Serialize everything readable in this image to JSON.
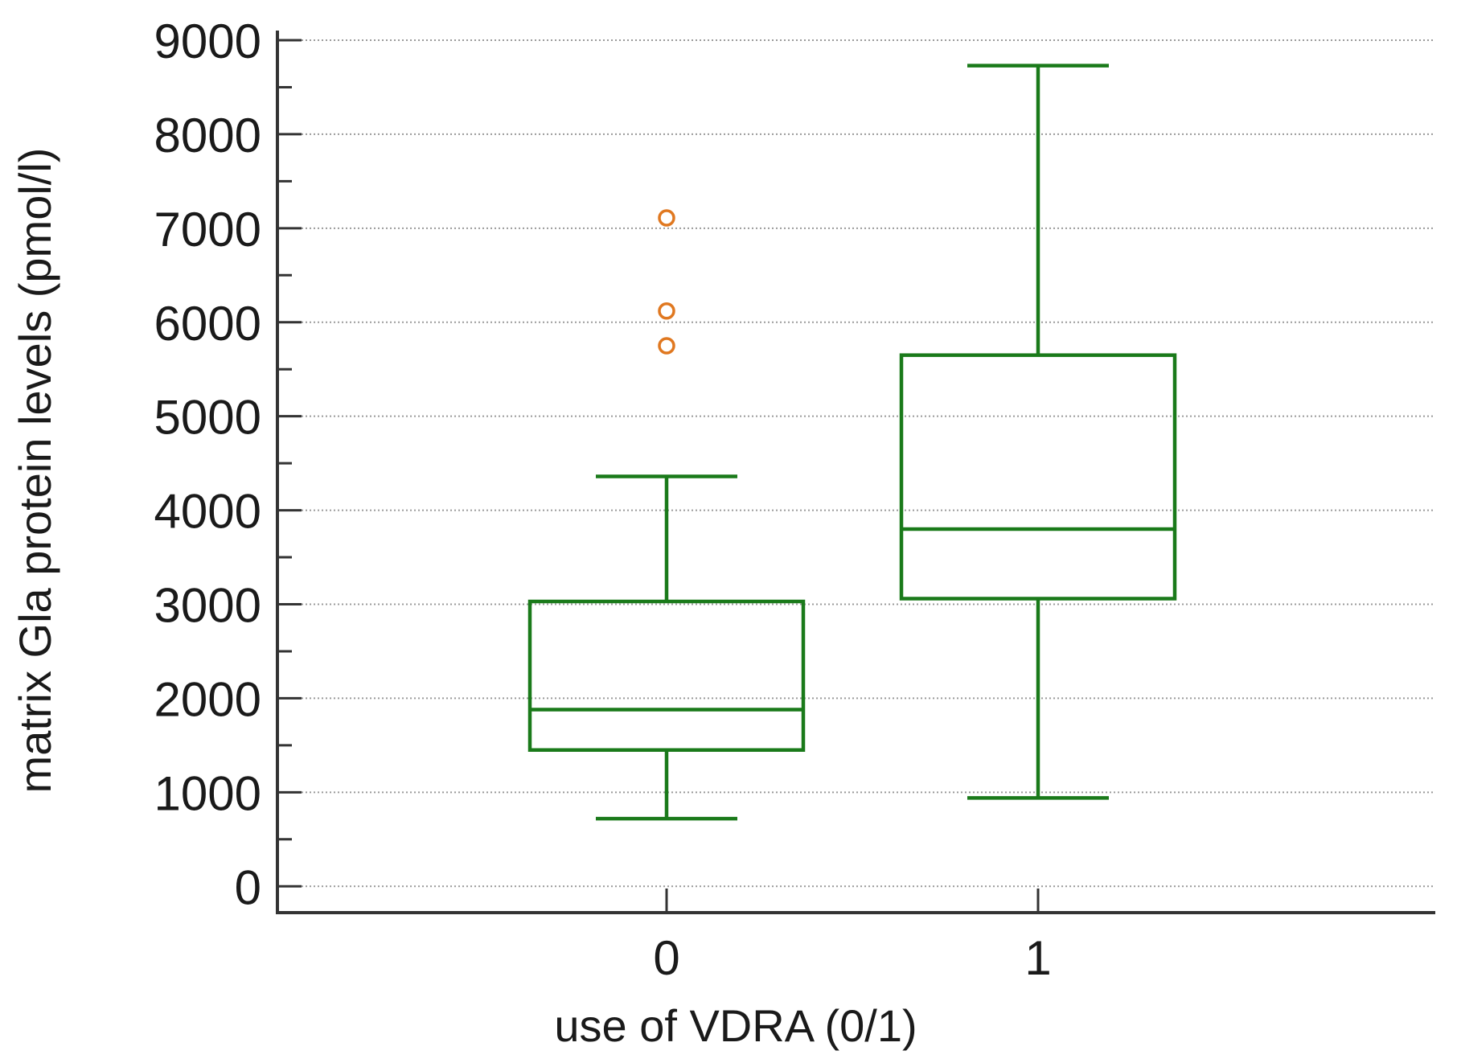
{
  "chart_data": {
    "type": "boxplot",
    "title": "",
    "xlabel": "use of VDRA (0/1)",
    "ylabel": "matrix Gla protein levels (pmol/l)",
    "ylim": [
      -280,
      9000
    ],
    "yticks": [
      0,
      1000,
      2000,
      3000,
      4000,
      5000,
      6000,
      7000,
      8000,
      9000
    ],
    "ytick_labels": [
      "0",
      "1000",
      "2000",
      "3000",
      "4000",
      "5000",
      "6000",
      "7000",
      "8000",
      "9000"
    ],
    "y_minor_step": 500,
    "grid": "horizontal dotted",
    "categories": [
      "0",
      "1"
    ],
    "boxes": [
      {
        "category": "0",
        "whisker_low": 720,
        "q1": 1450,
        "median": 1880,
        "q3": 3030,
        "whisker_high": 4360,
        "outliers": [
          5750,
          6120,
          7110
        ]
      },
      {
        "category": "1",
        "whisker_low": 940,
        "q1": 3060,
        "median": 3800,
        "q3": 5650,
        "whisker_high": 8730,
        "outliers": []
      }
    ],
    "colors": {
      "box": "#1a7a1a",
      "outlier": "#e07820",
      "axis": "#333333",
      "grid": "#9a9a9a"
    }
  }
}
